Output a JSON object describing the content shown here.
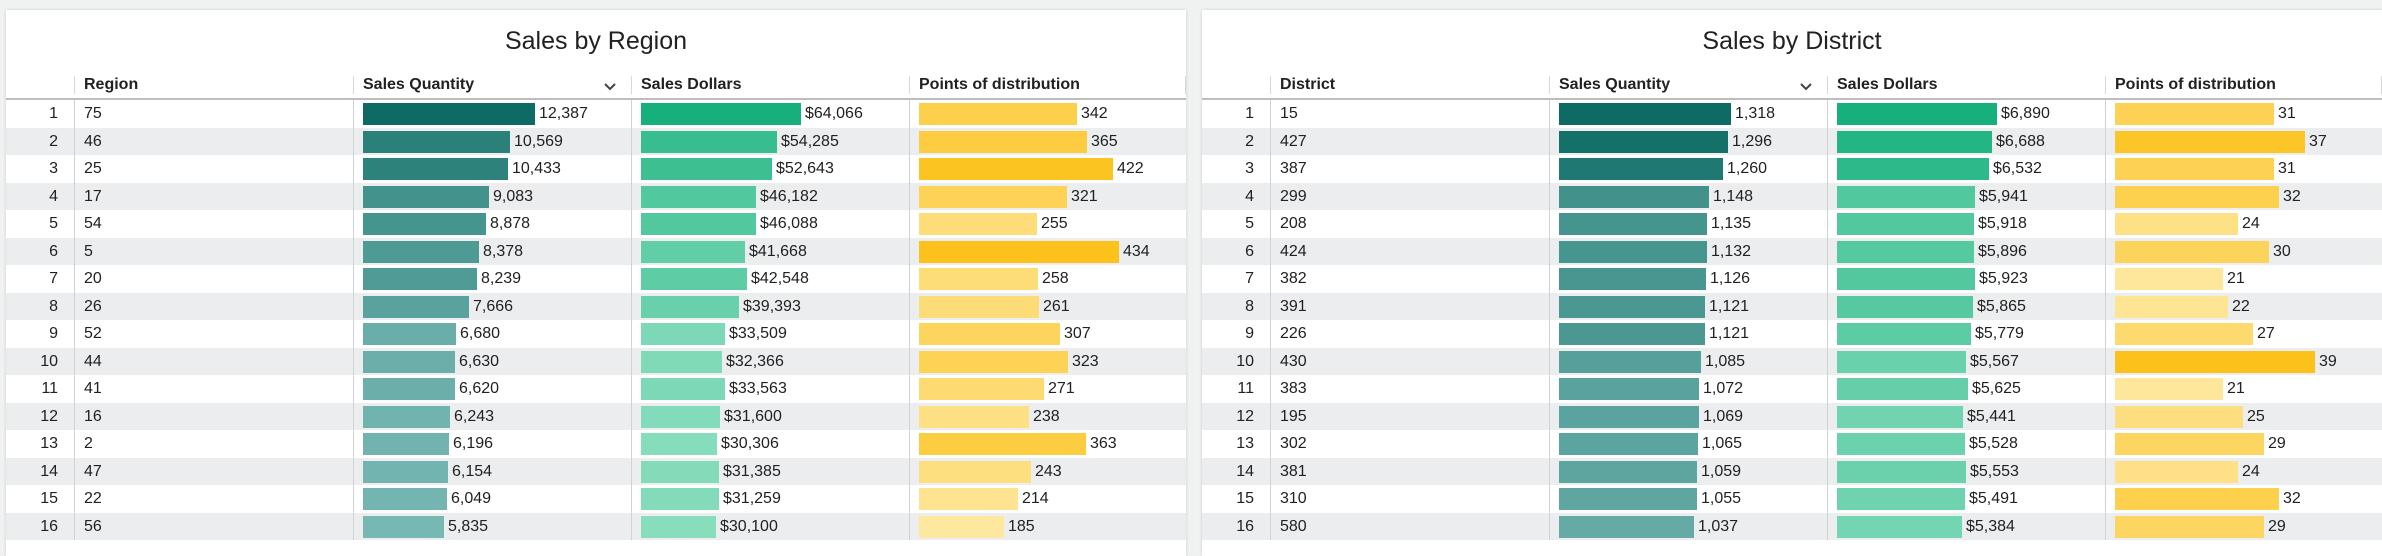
{
  "colors": {
    "qty_dark": "#0d6b63",
    "qty_light": "#7fbdb9",
    "dollars_dark": "#17b07d",
    "dollars_light": "#8fe0c1",
    "points_dark": "#fcc21b",
    "points_light": "#feeaa7"
  },
  "tables": [
    {
      "title": "Sales by Region",
      "columns": {
        "idx": "",
        "name": "Region",
        "qty": "Sales Quantity",
        "dollars": "Sales Dollars",
        "points": "Points of distribution"
      },
      "sort_icon": "chevron-down-icon",
      "scale": {
        "qty": [
          0,
          12387
        ],
        "dollars": [
          0,
          64066
        ],
        "points": [
          0,
          434
        ]
      },
      "rows": [
        {
          "idx": "1",
          "name": "75",
          "qty": 12387,
          "qty_label": "12,387",
          "dollars": 64066,
          "dollars_label": "$64,066",
          "points": 342,
          "points_label": "342"
        },
        {
          "idx": "2",
          "name": "46",
          "qty": 10569,
          "qty_label": "10,569",
          "dollars": 54285,
          "dollars_label": "$54,285",
          "points": 365,
          "points_label": "365"
        },
        {
          "idx": "3",
          "name": "25",
          "qty": 10433,
          "qty_label": "10,433",
          "dollars": 52643,
          "dollars_label": "$52,643",
          "points": 422,
          "points_label": "422"
        },
        {
          "idx": "4",
          "name": "17",
          "qty": 9083,
          "qty_label": "9,083",
          "dollars": 46182,
          "dollars_label": "$46,182",
          "points": 321,
          "points_label": "321"
        },
        {
          "idx": "5",
          "name": "54",
          "qty": 8878,
          "qty_label": "8,878",
          "dollars": 46088,
          "dollars_label": "$46,088",
          "points": 255,
          "points_label": "255"
        },
        {
          "idx": "6",
          "name": "5",
          "qty": 8378,
          "qty_label": "8,378",
          "dollars": 41668,
          "dollars_label": "$41,668",
          "points": 434,
          "points_label": "434"
        },
        {
          "idx": "7",
          "name": "20",
          "qty": 8239,
          "qty_label": "8,239",
          "dollars": 42548,
          "dollars_label": "$42,548",
          "points": 258,
          "points_label": "258"
        },
        {
          "idx": "8",
          "name": "26",
          "qty": 7666,
          "qty_label": "7,666",
          "dollars": 39393,
          "dollars_label": "$39,393",
          "points": 261,
          "points_label": "261"
        },
        {
          "idx": "9",
          "name": "52",
          "qty": 6680,
          "qty_label": "6,680",
          "dollars": 33509,
          "dollars_label": "$33,509",
          "points": 307,
          "points_label": "307"
        },
        {
          "idx": "10",
          "name": "44",
          "qty": 6630,
          "qty_label": "6,630",
          "dollars": 32366,
          "dollars_label": "$32,366",
          "points": 323,
          "points_label": "323"
        },
        {
          "idx": "11",
          "name": "41",
          "qty": 6620,
          "qty_label": "6,620",
          "dollars": 33563,
          "dollars_label": "$33,563",
          "points": 271,
          "points_label": "271"
        },
        {
          "idx": "12",
          "name": "16",
          "qty": 6243,
          "qty_label": "6,243",
          "dollars": 31600,
          "dollars_label": "$31,600",
          "points": 238,
          "points_label": "238"
        },
        {
          "idx": "13",
          "name": "2",
          "qty": 6196,
          "qty_label": "6,196",
          "dollars": 30306,
          "dollars_label": "$30,306",
          "points": 363,
          "points_label": "363"
        },
        {
          "idx": "14",
          "name": "47",
          "qty": 6154,
          "qty_label": "6,154",
          "dollars": 31385,
          "dollars_label": "$31,385",
          "points": 243,
          "points_label": "243"
        },
        {
          "idx": "15",
          "name": "22",
          "qty": 6049,
          "qty_label": "6,049",
          "dollars": 31259,
          "dollars_label": "$31,259",
          "points": 214,
          "points_label": "214"
        },
        {
          "idx": "16",
          "name": "56",
          "qty": 5835,
          "qty_label": "5,835",
          "dollars": 30100,
          "dollars_label": "$30,100",
          "points": 185,
          "points_label": "185"
        }
      ]
    },
    {
      "title": "Sales by District",
      "columns": {
        "idx": "",
        "name": "District",
        "qty": "Sales Quantity",
        "dollars": "Sales Dollars",
        "points": "Points of distribution"
      },
      "sort_icon": "chevron-down-icon",
      "scale": {
        "qty": [
          0,
          1318
        ],
        "dollars": [
          0,
          6890
        ],
        "points": [
          0,
          39
        ]
      },
      "rows": [
        {
          "idx": "1",
          "name": "15",
          "qty": 1318,
          "qty_label": "1,318",
          "dollars": 6890,
          "dollars_label": "$6,890",
          "points": 31,
          "points_label": "31"
        },
        {
          "idx": "2",
          "name": "427",
          "qty": 1296,
          "qty_label": "1,296",
          "dollars": 6688,
          "dollars_label": "$6,688",
          "points": 37,
          "points_label": "37"
        },
        {
          "idx": "3",
          "name": "387",
          "qty": 1260,
          "qty_label": "1,260",
          "dollars": 6532,
          "dollars_label": "$6,532",
          "points": 31,
          "points_label": "31"
        },
        {
          "idx": "4",
          "name": "299",
          "qty": 1148,
          "qty_label": "1,148",
          "dollars": 5941,
          "dollars_label": "$5,941",
          "points": 32,
          "points_label": "32"
        },
        {
          "idx": "5",
          "name": "208",
          "qty": 1135,
          "qty_label": "1,135",
          "dollars": 5918,
          "dollars_label": "$5,918",
          "points": 24,
          "points_label": "24"
        },
        {
          "idx": "6",
          "name": "424",
          "qty": 1132,
          "qty_label": "1,132",
          "dollars": 5896,
          "dollars_label": "$5,896",
          "points": 30,
          "points_label": "30"
        },
        {
          "idx": "7",
          "name": "382",
          "qty": 1126,
          "qty_label": "1,126",
          "dollars": 5923,
          "dollars_label": "$5,923",
          "points": 21,
          "points_label": "21"
        },
        {
          "idx": "8",
          "name": "391",
          "qty": 1121,
          "qty_label": "1,121",
          "dollars": 5865,
          "dollars_label": "$5,865",
          "points": 22,
          "points_label": "22"
        },
        {
          "idx": "9",
          "name": "226",
          "qty": 1121,
          "qty_label": "1,121",
          "dollars": 5779,
          "dollars_label": "$5,779",
          "points": 27,
          "points_label": "27"
        },
        {
          "idx": "10",
          "name": "430",
          "qty": 1085,
          "qty_label": "1,085",
          "dollars": 5567,
          "dollars_label": "$5,567",
          "points": 39,
          "points_label": "39"
        },
        {
          "idx": "11",
          "name": "383",
          "qty": 1072,
          "qty_label": "1,072",
          "dollars": 5625,
          "dollars_label": "$5,625",
          "points": 21,
          "points_label": "21"
        },
        {
          "idx": "12",
          "name": "195",
          "qty": 1069,
          "qty_label": "1,069",
          "dollars": 5441,
          "dollars_label": "$5,441",
          "points": 25,
          "points_label": "25"
        },
        {
          "idx": "13",
          "name": "302",
          "qty": 1065,
          "qty_label": "1,065",
          "dollars": 5528,
          "dollars_label": "$5,528",
          "points": 29,
          "points_label": "29"
        },
        {
          "idx": "14",
          "name": "381",
          "qty": 1059,
          "qty_label": "1,059",
          "dollars": 5553,
          "dollars_label": "$5,553",
          "points": 24,
          "points_label": "24"
        },
        {
          "idx": "15",
          "name": "310",
          "qty": 1055,
          "qty_label": "1,055",
          "dollars": 5491,
          "dollars_label": "$5,491",
          "points": 32,
          "points_label": "32"
        },
        {
          "idx": "16",
          "name": "580",
          "qty": 1037,
          "qty_label": "1,037",
          "dollars": 5384,
          "dollars_label": "$5,384",
          "points": 29,
          "points_label": "29"
        }
      ]
    }
  ]
}
